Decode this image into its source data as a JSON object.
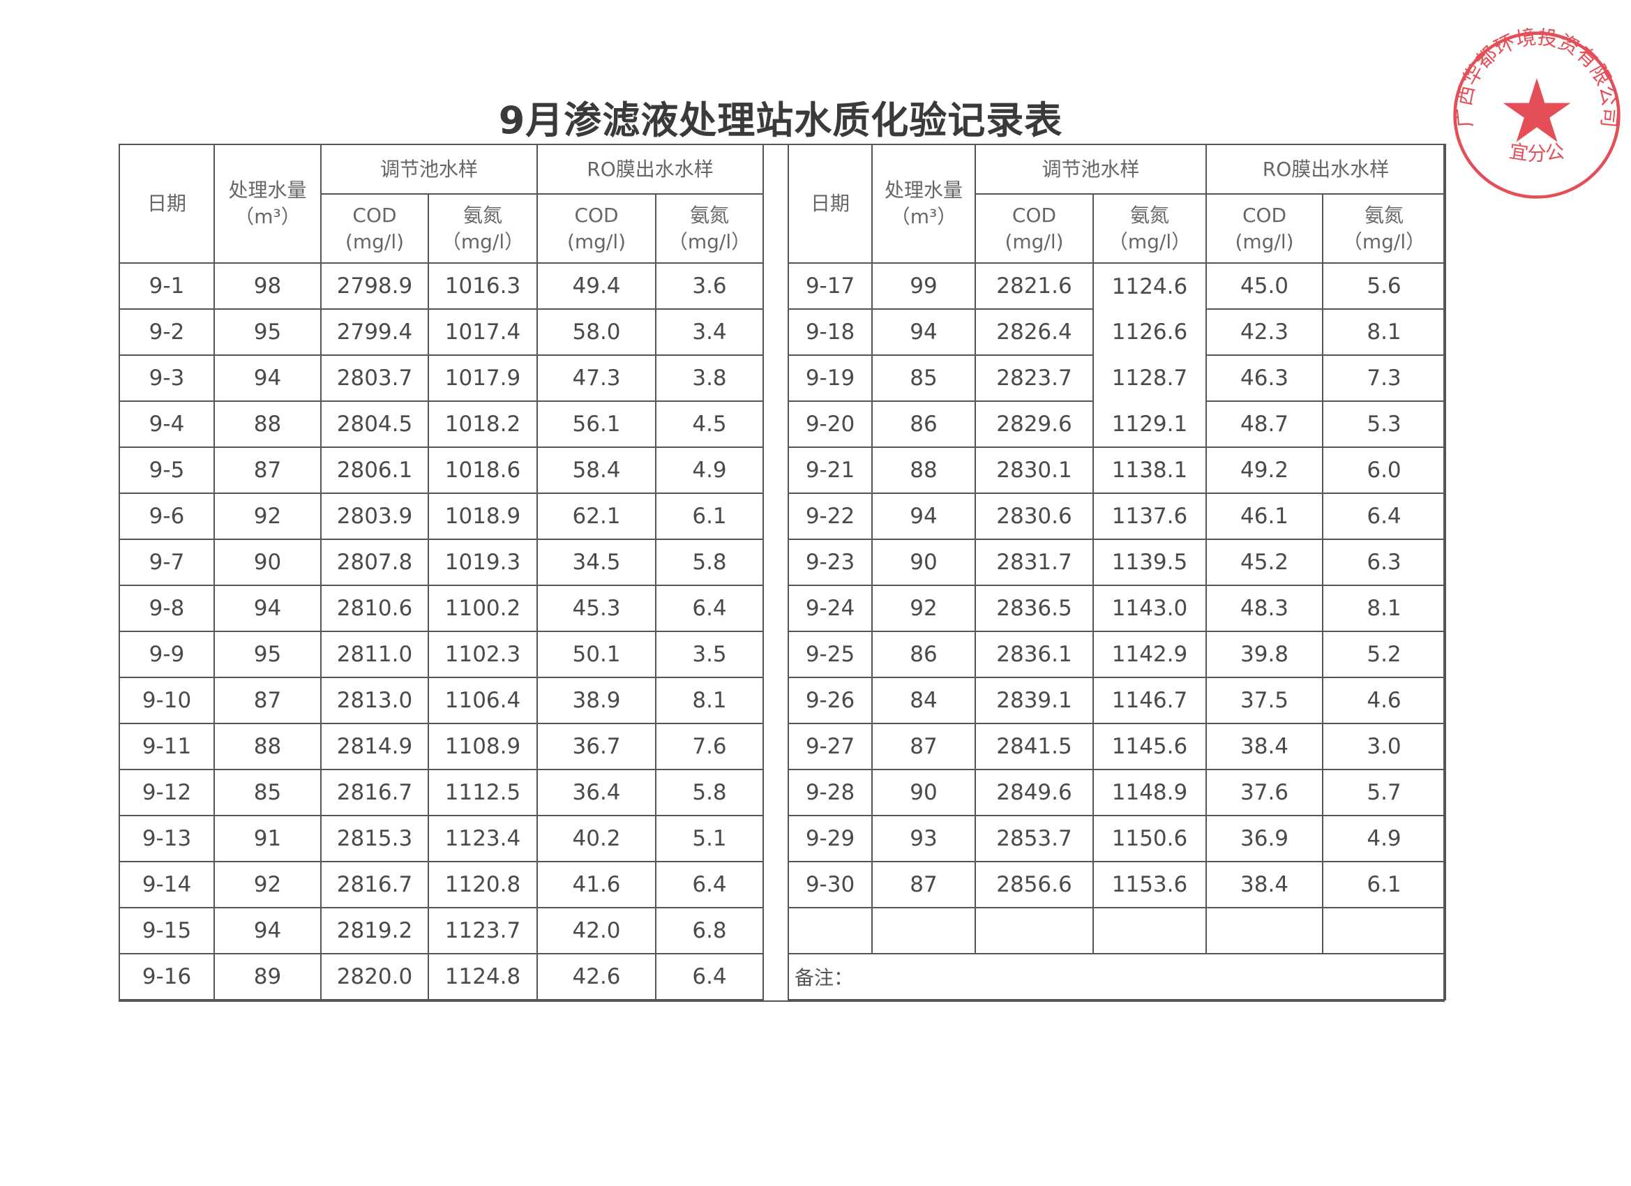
{
  "title": "9月渗滤液处理站水质化验记录表",
  "headers": {
    "date": "日期",
    "volume": "处理水量",
    "volume_unit": "（m³）",
    "tank_group": "调节池水样",
    "ro_group": "RO膜出水水样",
    "cod": "COD",
    "cod_unit": "(mg/l)",
    "ammonia": "氨氮",
    "ammonia_unit": "（mg/l）"
  },
  "left_rows": [
    [
      "9-1",
      "98",
      "2798.9",
      "1016.3",
      "49.4",
      "3.6"
    ],
    [
      "9-2",
      "95",
      "2799.4",
      "1017.4",
      "58.0",
      "3.4"
    ],
    [
      "9-3",
      "94",
      "2803.7",
      "1017.9",
      "47.3",
      "3.8"
    ],
    [
      "9-4",
      "88",
      "2804.5",
      "1018.2",
      "56.1",
      "4.5"
    ],
    [
      "9-5",
      "87",
      "2806.1",
      "1018.6",
      "58.4",
      "4.9"
    ],
    [
      "9-6",
      "92",
      "2803.9",
      "1018.9",
      "62.1",
      "6.1"
    ],
    [
      "9-7",
      "90",
      "2807.8",
      "1019.3",
      "34.5",
      "5.8"
    ],
    [
      "9-8",
      "94",
      "2810.6",
      "1100.2",
      "45.3",
      "6.4"
    ],
    [
      "9-9",
      "95",
      "2811.0",
      "1102.3",
      "50.1",
      "3.5"
    ],
    [
      "9-10",
      "87",
      "2813.0",
      "1106.4",
      "38.9",
      "8.1"
    ],
    [
      "9-11",
      "88",
      "2814.9",
      "1108.9",
      "36.7",
      "7.6"
    ],
    [
      "9-12",
      "85",
      "2816.7",
      "1112.5",
      "36.4",
      "5.8"
    ],
    [
      "9-13",
      "91",
      "2815.3",
      "1123.4",
      "40.2",
      "5.1"
    ],
    [
      "9-14",
      "92",
      "2816.7",
      "1120.8",
      "41.6",
      "6.4"
    ],
    [
      "9-15",
      "94",
      "2819.2",
      "1123.7",
      "42.0",
      "6.8"
    ],
    [
      "9-16",
      "89",
      "2820.0",
      "1124.8",
      "42.6",
      "6.4"
    ]
  ],
  "right_rows": [
    [
      "9-17",
      "99",
      "2821.6",
      "1124.6",
      "45.0",
      "5.6"
    ],
    [
      "9-18",
      "94",
      "2826.4",
      "1126.6",
      "42.3",
      "8.1"
    ],
    [
      "9-19",
      "85",
      "2823.7",
      "1128.7",
      "46.3",
      "7.3"
    ],
    [
      "9-20",
      "86",
      "2829.6",
      "1129.1",
      "48.7",
      "5.3"
    ],
    [
      "9-21",
      "88",
      "2830.1",
      "1138.1",
      "49.2",
      "6.0"
    ],
    [
      "9-22",
      "94",
      "2830.6",
      "1137.6",
      "46.1",
      "6.4"
    ],
    [
      "9-23",
      "90",
      "2831.7",
      "1139.5",
      "45.2",
      "6.3"
    ],
    [
      "9-24",
      "92",
      "2836.5",
      "1143.0",
      "48.3",
      "8.1"
    ],
    [
      "9-25",
      "86",
      "2836.1",
      "1142.9",
      "39.8",
      "5.2"
    ],
    [
      "9-26",
      "84",
      "2839.1",
      "1146.7",
      "37.5",
      "4.6"
    ],
    [
      "9-27",
      "87",
      "2841.5",
      "1145.6",
      "38.4",
      "3.0"
    ],
    [
      "9-28",
      "90",
      "2849.6",
      "1148.9",
      "37.6",
      "5.7"
    ],
    [
      "9-29",
      "93",
      "2853.7",
      "1150.6",
      "36.9",
      "4.9"
    ],
    [
      "9-30",
      "87",
      "2856.6",
      "1153.6",
      "38.4",
      "6.1"
    ],
    [
      "",
      "",
      "",
      "",
      "",
      ""
    ]
  ],
  "remark_label": "备注：",
  "stamp": {
    "outer_text": "广西华都环境投资有限公司",
    "inner_text": "信宜分公司",
    "color": "#e0303a"
  }
}
